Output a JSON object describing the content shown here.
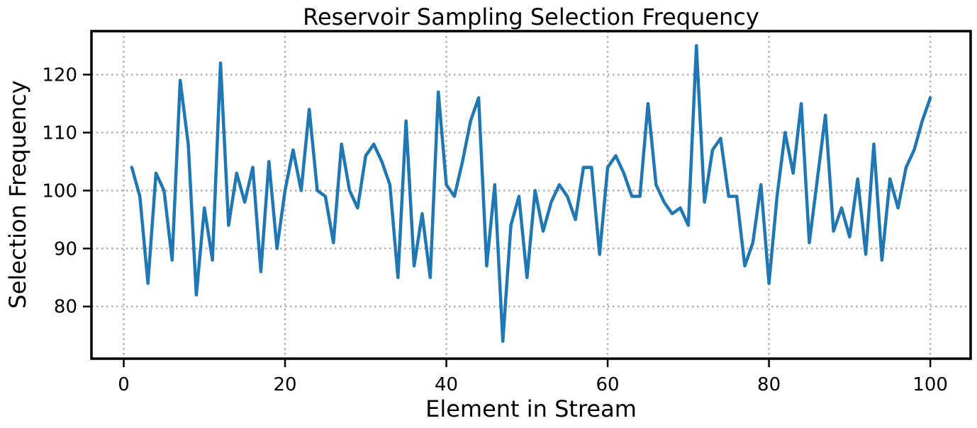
{
  "chart_data": {
    "type": "line",
    "title": "Reservoir Sampling Selection Frequency",
    "xlabel": "Element in Stream",
    "ylabel": "Selection Frequency",
    "xlim": [
      -4,
      105
    ],
    "ylim": [
      71,
      127.5
    ],
    "xticks": [
      0,
      20,
      40,
      60,
      80,
      100
    ],
    "yticks": [
      80,
      90,
      100,
      110,
      120
    ],
    "grid": true,
    "legend": "none",
    "series": [
      {
        "color": "#1f77b4",
        "x": [
          1,
          2,
          3,
          4,
          5,
          6,
          7,
          8,
          9,
          10,
          11,
          12,
          13,
          14,
          15,
          16,
          17,
          18,
          19,
          20,
          21,
          22,
          23,
          24,
          25,
          26,
          27,
          28,
          29,
          30,
          31,
          32,
          33,
          34,
          35,
          36,
          37,
          38,
          39,
          40,
          41,
          42,
          43,
          44,
          45,
          46,
          47,
          48,
          49,
          50,
          51,
          52,
          53,
          54,
          55,
          56,
          57,
          58,
          59,
          60,
          61,
          62,
          63,
          64,
          65,
          66,
          67,
          68,
          69,
          70,
          71,
          72,
          73,
          74,
          75,
          76,
          77,
          78,
          79,
          80,
          81,
          82,
          83,
          84,
          85,
          86,
          87,
          88,
          89,
          90,
          91,
          92,
          93,
          94,
          95,
          96,
          97,
          98,
          99,
          100
        ],
        "values": [
          104,
          99,
          84,
          103,
          100,
          88,
          119,
          108,
          82,
          97,
          88,
          122,
          94,
          103,
          98,
          104,
          86,
          105,
          90,
          100,
          107,
          100,
          114,
          100,
          99,
          91,
          108,
          100,
          97,
          106,
          108,
          105,
          101,
          85,
          112,
          87,
          96,
          85,
          117,
          101,
          99,
          105,
          112,
          116,
          87,
          101,
          74,
          94,
          99,
          85,
          100,
          93,
          98,
          101,
          99,
          95,
          104,
          104,
          89,
          104,
          106,
          103,
          99,
          99,
          115,
          101,
          98,
          96,
          97,
          94,
          125,
          98,
          107,
          109,
          99,
          99,
          87,
          91,
          101,
          84,
          99,
          110,
          103,
          115,
          91,
          102,
          113,
          93,
          97,
          92,
          102,
          89,
          108,
          88,
          102,
          97,
          104,
          107,
          112,
          116
        ]
      }
    ]
  }
}
